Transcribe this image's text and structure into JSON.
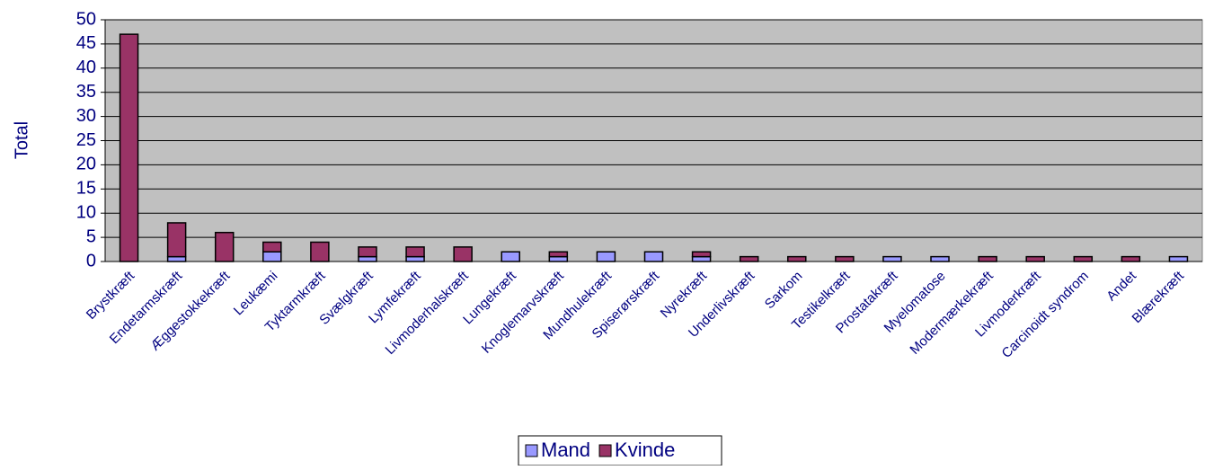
{
  "chart_data": {
    "type": "bar",
    "stacked": true,
    "y_label": "Total",
    "categories": [
      "Brystkræft",
      "Endetarmskræft",
      "Æggestokkekræft",
      "Leukæmi",
      "Tyktarmkræft",
      "Svælgkræft",
      "Lymfekræft",
      "Livmoderhalskræft",
      "Lungekræft",
      "Knoglemarvskræft",
      "Mundhulekræft",
      "Spiserørskræft",
      "Nyrekræft",
      "Underlivskræft",
      "Sarkom",
      "Testikelkræft",
      "Prostatakræft",
      "Myelomatose",
      "Modermærkekræft",
      "Livmoderkræft",
      "Carcinoidt syndrom",
      "Andet",
      "Blærekræft"
    ],
    "series": [
      {
        "name": "Mand",
        "color": "#9999ff",
        "values": [
          0,
          1,
          0,
          2,
          0,
          1,
          1,
          0,
          2,
          1,
          2,
          2,
          1,
          0,
          0,
          0,
          1,
          1,
          0,
          0,
          0,
          0,
          1
        ]
      },
      {
        "name": "Kvinde",
        "color": "#993366",
        "values": [
          47,
          7,
          6,
          2,
          4,
          2,
          2,
          3,
          0,
          1,
          0,
          0,
          1,
          1,
          1,
          1,
          0,
          0,
          1,
          1,
          1,
          1,
          0
        ]
      }
    ],
    "ylim": [
      0,
      50
    ],
    "yticks": [
      0,
      5,
      10,
      15,
      20,
      25,
      30,
      35,
      40,
      45,
      50
    ],
    "grid": true,
    "background": "#c0c0c0",
    "legend": "bottom"
  }
}
